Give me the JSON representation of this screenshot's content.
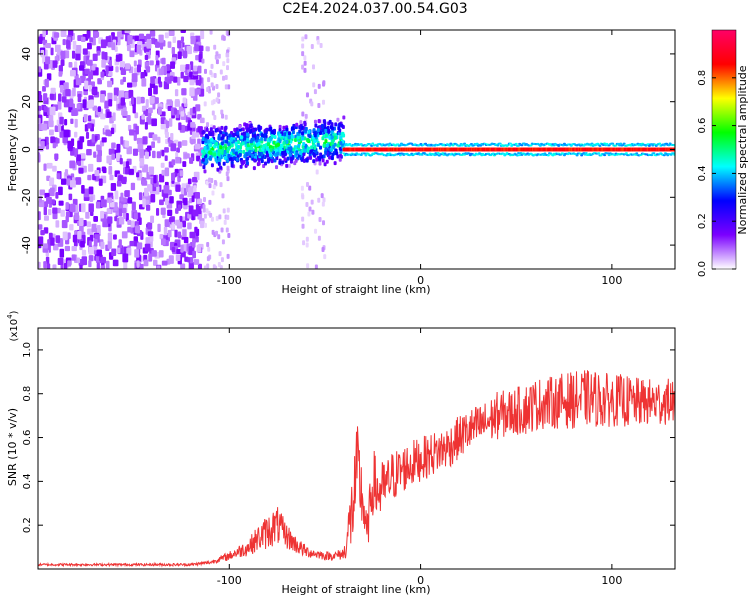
{
  "title": "C2E4.2024.037.00.54.G03",
  "chart_data": [
    {
      "type": "heatmap",
      "xlabel": "Height of straight line (km)",
      "ylabel": "Frequency (Hz)",
      "xlim": [
        -200,
        133
      ],
      "ylim": [
        -50,
        50
      ],
      "xticks": [
        -100,
        0,
        100
      ],
      "yticks": [
        -40,
        -20,
        0,
        20,
        40
      ],
      "colorbar": {
        "label": "Normalized spectral amplitude",
        "range": [
          0.0,
          1.0
        ],
        "ticks": [
          0.0,
          0.2,
          0.4,
          0.6,
          0.8
        ],
        "tick_labels": [
          "0.0",
          "0.2",
          "0.4",
          "0.6",
          "0.8"
        ],
        "colors": [
          "#ffffff",
          "#7b00ff",
          "#0000ff",
          "#00ffff",
          "#00ff00",
          "#ffff00",
          "#ff0000",
          "#ff0066"
        ]
      },
      "regions": [
        {
          "x": [
            -200,
            -114
          ],
          "description": "scattered low-amplitude noise across all frequencies"
        },
        {
          "x": [
            -114,
            -40
          ],
          "freq_center": 0,
          "description": "broadband signal band near 0 Hz, rising toward positive frequencies"
        },
        {
          "x": [
            -40,
            133
          ],
          "freq_center": 0,
          "description": "narrow high-amplitude band near 0 Hz"
        }
      ]
    },
    {
      "type": "line",
      "xlabel": "Height of straight line (km)",
      "ylabel": "SNR (10 * v/v)",
      "y_multiplier": "(x10",
      "y_multiplier_exp": "4",
      "y_multiplier_close": ")",
      "xlim": [
        -200,
        133
      ],
      "ylim": [
        0,
        1.1
      ],
      "xticks": [
        -100,
        0,
        100
      ],
      "yticks": [
        0.2,
        0.4,
        0.6,
        0.8,
        1.0
      ],
      "ytick_labels": [
        "0.2",
        "0.4",
        "0.6",
        "0.8",
        "1.0"
      ],
      "series": [
        {
          "color": "#ee3333",
          "x": [
            -200,
            -120,
            -110,
            -100,
            -90,
            -85,
            -80,
            -75,
            -70,
            -65,
            -60,
            -55,
            -50,
            -45,
            -40,
            -36,
            -33,
            -30,
            -28,
            -25,
            -22,
            -18,
            -15,
            -10,
            -5,
            0,
            5,
            10,
            15,
            20,
            25,
            30,
            35,
            40,
            45,
            50,
            55,
            60,
            65,
            70,
            75,
            80,
            85,
            90,
            95,
            100,
            105,
            110,
            115,
            120,
            125,
            133
          ],
          "y": [
            0.02,
            0.02,
            0.03,
            0.06,
            0.1,
            0.14,
            0.17,
            0.2,
            0.15,
            0.11,
            0.08,
            0.07,
            0.06,
            0.06,
            0.07,
            0.25,
            0.45,
            0.3,
            0.15,
            0.4,
            0.35,
            0.38,
            0.42,
            0.45,
            0.48,
            0.5,
            0.52,
            0.54,
            0.56,
            0.6,
            0.63,
            0.65,
            0.67,
            0.7,
            0.71,
            0.72,
            0.73,
            0.75,
            0.76,
            0.76,
            0.77,
            0.77,
            0.78,
            0.78,
            0.77,
            0.77,
            0.77,
            0.76,
            0.76,
            0.76,
            0.76,
            0.77
          ],
          "noise": [
            0.005,
            0.006,
            0.008,
            0.02,
            0.04,
            0.06,
            0.08,
            0.09,
            0.06,
            0.04,
            0.03,
            0.02,
            0.02,
            0.02,
            0.03,
            0.18,
            0.22,
            0.14,
            0.08,
            0.16,
            0.14,
            0.12,
            0.12,
            0.11,
            0.11,
            0.1,
            0.1,
            0.1,
            0.1,
            0.1,
            0.1,
            0.1,
            0.1,
            0.11,
            0.11,
            0.11,
            0.12,
            0.12,
            0.12,
            0.12,
            0.13,
            0.13,
            0.13,
            0.13,
            0.13,
            0.12,
            0.12,
            0.12,
            0.11,
            0.11,
            0.11,
            0.1
          ]
        }
      ]
    }
  ]
}
